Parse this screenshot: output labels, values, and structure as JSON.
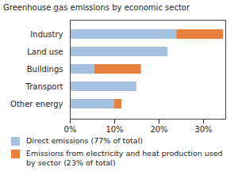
{
  "chart_data": {
    "type": "bar",
    "title": "Greenhouse gas emissions by economic sector",
    "orientation": "horizontal",
    "stacked": true,
    "categories": [
      "Industry",
      "Land use",
      "Buildings",
      "Transport",
      "Other energy"
    ],
    "series": [
      {
        "name": "Direct emissions (77% of total)",
        "color": "#a3c1e0",
        "values": [
          24,
          22,
          5.5,
          15,
          10
        ]
      },
      {
        "name": "Emissions from electricity and heat production used by sector (23% of total)",
        "color": "#e8803d",
        "values": [
          10.5,
          0,
          10.5,
          0,
          1.6
        ]
      }
    ],
    "xlim": [
      0,
      35
    ],
    "xticks": [
      {
        "value": 0,
        "label": "0%"
      },
      {
        "value": 10,
        "label": "10%"
      },
      {
        "value": 20,
        "label": "20%"
      },
      {
        "value": 30,
        "label": "30%"
      }
    ],
    "legend": "bottom"
  }
}
